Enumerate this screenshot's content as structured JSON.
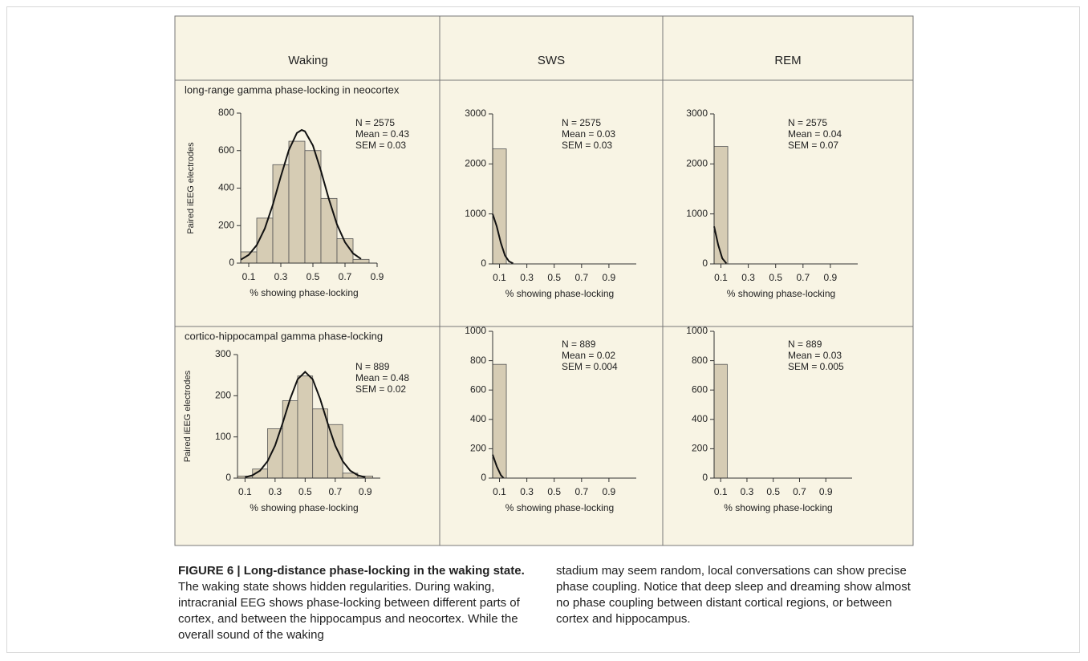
{
  "figure": {
    "columns": [
      "Waking",
      "SWS",
      "REM"
    ],
    "rows": [
      "long-range gamma phase-locking in neocortex",
      "cortico-hippocampal gamma phase-locking"
    ]
  },
  "chart_data": [
    {
      "type": "histogram",
      "bins": [
        0.05,
        0.15,
        0.25,
        0.35,
        0.45,
        0.55,
        0.65,
        0.75,
        0.85
      ],
      "counts": [
        60,
        240,
        525,
        650,
        600,
        345,
        130,
        20
      ],
      "fit": {
        "x": [
          0.05,
          0.1,
          0.15,
          0.2,
          0.25,
          0.3,
          0.35,
          0.4,
          0.43,
          0.45,
          0.5,
          0.55,
          0.6,
          0.65,
          0.7,
          0.75,
          0.8
        ],
        "y": [
          18,
          44,
          96,
          184,
          311,
          462,
          603,
          694,
          710,
          703,
          627,
          492,
          340,
          206,
          111,
          52,
          22
        ]
      },
      "xlim": [
        0.05,
        0.9
      ],
      "ylim": [
        0,
        800
      ],
      "xticks": [
        0.1,
        0.3,
        0.5,
        0.7,
        0.9
      ],
      "yticks": [
        0,
        200,
        400,
        600,
        800
      ],
      "xlabel": "% showing phase-locking",
      "ylabel": "Paired iEEG electrodes",
      "annotations": [
        "N = 2575",
        "Mean = 0.43",
        "SEM = 0.03"
      ],
      "color": "#d6ccb4"
    },
    {
      "type": "histogram",
      "bins": [
        0.05,
        0.15
      ],
      "counts": [
        2300
      ],
      "fit": {
        "x": [
          0.05,
          0.08,
          0.11,
          0.14,
          0.17,
          0.2
        ],
        "y": [
          1000,
          750,
          420,
          170,
          50,
          10
        ]
      },
      "xlim": [
        0.05,
        1.1
      ],
      "ylim": [
        0,
        3000
      ],
      "xticks": [
        0.1,
        0.3,
        0.5,
        0.7,
        0.9
      ],
      "yticks": [
        0,
        1000,
        2000,
        3000
      ],
      "xlabel": "% showing phase-locking",
      "annotations": [
        "N = 2575",
        "Mean = 0.03",
        "SEM = 0.03"
      ],
      "color": "#d6ccb4"
    },
    {
      "type": "histogram",
      "bins": [
        0.05,
        0.15
      ],
      "counts": [
        2350
      ],
      "fit": {
        "x": [
          0.05,
          0.08,
          0.11,
          0.14
        ],
        "y": [
          750,
          380,
          110,
          10
        ]
      },
      "xlim": [
        0.05,
        1.1
      ],
      "ylim": [
        0,
        3000
      ],
      "xticks": [
        0.1,
        0.3,
        0.5,
        0.7,
        0.9
      ],
      "yticks": [
        0,
        1000,
        2000,
        3000
      ],
      "xlabel": "% showing phase-locking",
      "annotations": [
        "N = 2575",
        "Mean = 0.04",
        "SEM = 0.07"
      ],
      "color": "#d6ccb4"
    },
    {
      "type": "histogram",
      "bins": [
        0.05,
        0.15,
        0.25,
        0.35,
        0.45,
        0.55,
        0.65,
        0.75,
        0.85,
        0.95
      ],
      "counts": [
        5,
        22,
        120,
        188,
        248,
        168,
        130,
        12,
        5
      ],
      "fit": {
        "x": [
          0.1,
          0.15,
          0.2,
          0.25,
          0.3,
          0.35,
          0.4,
          0.45,
          0.5,
          0.55,
          0.6,
          0.65,
          0.7,
          0.75,
          0.8,
          0.85,
          0.9
        ],
        "y": [
          2,
          7,
          18,
          41,
          79,
          133,
          192,
          240,
          258,
          240,
          192,
          133,
          79,
          41,
          18,
          7,
          2
        ]
      },
      "xlim": [
        0.05,
        1.0
      ],
      "ylim": [
        0,
        300
      ],
      "xticks": [
        0.1,
        0.3,
        0.5,
        0.7,
        0.9
      ],
      "yticks": [
        0,
        100,
        200,
        300
      ],
      "xlabel": "% showing phase-locking",
      "ylabel": "Paired iEEG electrodes",
      "annotations": [
        "N = 889",
        "Mean = 0.48",
        "SEM = 0.02"
      ],
      "color": "#d6ccb4"
    },
    {
      "type": "histogram",
      "bins": [
        0.05,
        0.15
      ],
      "counts": [
        775
      ],
      "fit": {
        "x": [
          0.05,
          0.08,
          0.11,
          0.13
        ],
        "y": [
          160,
          80,
          20,
          0
        ]
      },
      "xlim": [
        0.05,
        1.1
      ],
      "ylim": [
        0,
        1000
      ],
      "xticks": [
        0.1,
        0.3,
        0.5,
        0.7,
        0.9
      ],
      "yticks": [
        0,
        200,
        400,
        600,
        800,
        1000
      ],
      "xlabel": "% showing phase-locking",
      "annotations": [
        "N = 889",
        "Mean = 0.02",
        "SEM = 0.004"
      ],
      "color": "#d6ccb4"
    },
    {
      "type": "histogram",
      "bins": [
        0.05,
        0.15
      ],
      "counts": [
        775
      ],
      "xlim": [
        0.05,
        1.1
      ],
      "ylim": [
        0,
        1000
      ],
      "xticks": [
        0.1,
        0.3,
        0.5,
        0.7,
        0.9
      ],
      "yticks": [
        0,
        200,
        400,
        600,
        800,
        1000
      ],
      "xlabel": "% showing phase-locking",
      "annotations": [
        "N = 889",
        "Mean = 0.03",
        "SEM = 0.005"
      ],
      "color": "#d6ccb4"
    }
  ],
  "caption": {
    "label": "FIGURE 6 | Long-distance phase-locking in the waking state.",
    "text": [
      "The waking state shows hidden regularities. During waking, intracranial EEG shows phase-locking between different parts of cortex, and between the hippocampus and neocortex. While the overall sound of the waking",
      "stadium may seem random, local conversations can show precise phase coupling. Notice that deep sleep and dreaming show almost no phase coupling between distant cortical regions, or between cortex and hippocampus."
    ]
  }
}
